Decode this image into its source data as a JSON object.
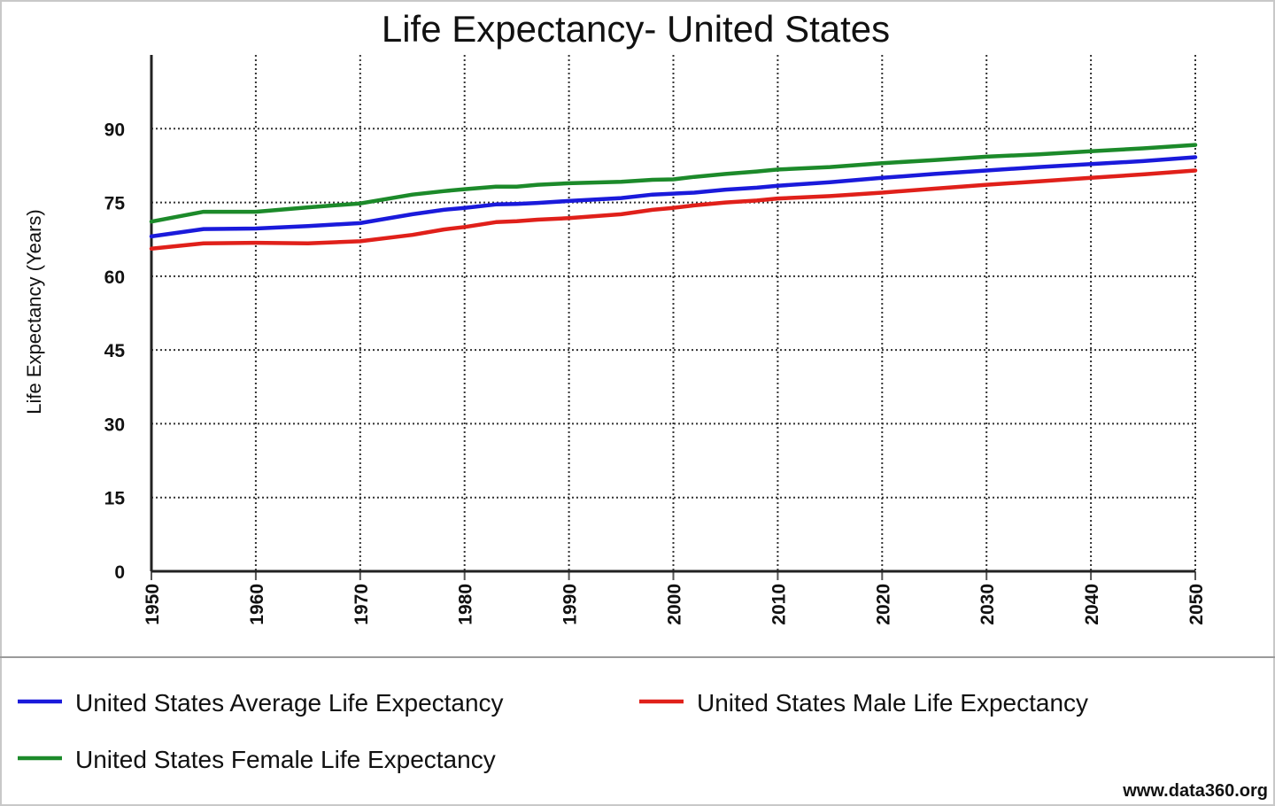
{
  "chart_data": {
    "type": "line",
    "title": "Life Expectancy- United States",
    "xlabel": "",
    "ylabel": "Life Expectancy (Years)",
    "xlim": [
      1950,
      2050
    ],
    "ylim": [
      0,
      105
    ],
    "x_ticks": [
      "1950",
      "1960",
      "1970",
      "1980",
      "1990",
      "2000",
      "2010",
      "2020",
      "2030",
      "2040",
      "2050"
    ],
    "y_ticks": [
      "0",
      "15",
      "30",
      "45",
      "60",
      "75",
      "90"
    ],
    "grid": true,
    "legend_position": "bottom",
    "series": [
      {
        "name": "United States Average Life Expectancy",
        "color": "#1a1adb",
        "x": [
          1950,
          1955,
          1960,
          1965,
          1970,
          1975,
          1978,
          1980,
          1983,
          1985,
          1987,
          1990,
          1995,
          1998,
          2000,
          2002,
          2005,
          2008,
          2010,
          2015,
          2020,
          2025,
          2030,
          2035,
          2040,
          2045,
          2050
        ],
        "values": [
          68.1,
          69.6,
          69.7,
          70.2,
          70.8,
          72.6,
          73.5,
          73.9,
          74.6,
          74.7,
          74.9,
          75.3,
          75.9,
          76.6,
          76.8,
          77.0,
          77.6,
          78.0,
          78.4,
          79.1,
          80.0,
          80.8,
          81.5,
          82.2,
          82.8,
          83.4,
          84.2
        ]
      },
      {
        "name": "United States Male Life Expectancy",
        "color": "#e0201a",
        "x": [
          1950,
          1955,
          1960,
          1965,
          1970,
          1975,
          1978,
          1980,
          1983,
          1985,
          1987,
          1990,
          1995,
          1998,
          2000,
          2002,
          2005,
          2008,
          2010,
          2015,
          2020,
          2025,
          2030,
          2035,
          2040,
          2045,
          2050
        ],
        "values": [
          65.6,
          66.7,
          66.8,
          66.7,
          67.1,
          68.4,
          69.5,
          70.0,
          71.0,
          71.2,
          71.5,
          71.8,
          72.6,
          73.5,
          73.9,
          74.4,
          75.0,
          75.4,
          75.8,
          76.3,
          77.0,
          77.8,
          78.6,
          79.3,
          80.0,
          80.7,
          81.5
        ]
      },
      {
        "name": "United States Female Life Expectancy",
        "color": "#1c8a2a",
        "x": [
          1950,
          1955,
          1960,
          1965,
          1970,
          1975,
          1978,
          1980,
          1983,
          1985,
          1987,
          1990,
          1995,
          1998,
          2000,
          2002,
          2005,
          2008,
          2010,
          2015,
          2020,
          2025,
          2030,
          2035,
          2040,
          2045,
          2050
        ],
        "values": [
          71.1,
          73.1,
          73.1,
          74.0,
          74.8,
          76.6,
          77.3,
          77.7,
          78.2,
          78.2,
          78.6,
          78.9,
          79.2,
          79.6,
          79.7,
          80.2,
          80.8,
          81.3,
          81.7,
          82.2,
          83.0,
          83.6,
          84.3,
          84.8,
          85.4,
          86.0,
          86.7
        ]
      }
    ]
  },
  "credit": "www.data360.org"
}
